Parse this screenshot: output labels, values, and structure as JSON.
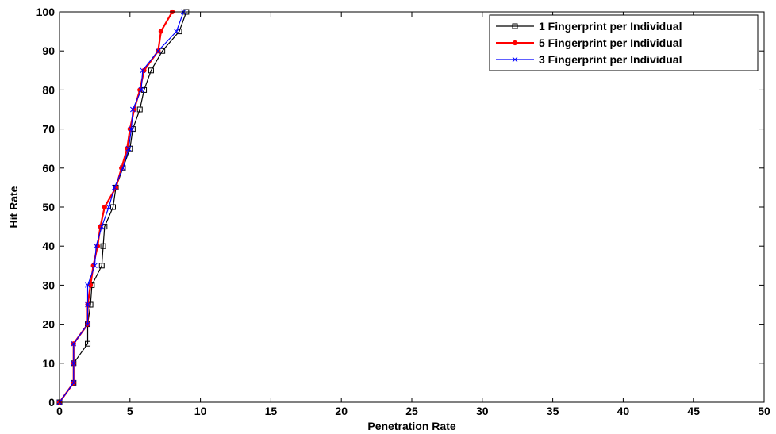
{
  "chart_data": {
    "type": "line",
    "title": "",
    "xlabel": "Penetration Rate",
    "ylabel": "Hit Rate",
    "xlim": [
      0,
      50
    ],
    "ylim": [
      0,
      100
    ],
    "xticks": [
      0,
      5,
      10,
      15,
      20,
      25,
      30,
      35,
      40,
      45,
      50
    ],
    "yticks": [
      0,
      10,
      20,
      30,
      40,
      50,
      60,
      70,
      80,
      90,
      100
    ],
    "grid": false,
    "legend_position": "top-right",
    "series": [
      {
        "name": "1 Fingerprint per Individual",
        "color": "#000000",
        "marker": "square",
        "points": [
          [
            0,
            0
          ],
          [
            1,
            5
          ],
          [
            1,
            10
          ],
          [
            2,
            15
          ],
          [
            2,
            20
          ],
          [
            2.2,
            25
          ],
          [
            2.3,
            30
          ],
          [
            3,
            35
          ],
          [
            3.1,
            40
          ],
          [
            3.2,
            45
          ],
          [
            3.8,
            50
          ],
          [
            4,
            55
          ],
          [
            4.5,
            60
          ],
          [
            5,
            65
          ],
          [
            5.2,
            70
          ],
          [
            5.7,
            75
          ],
          [
            6,
            80
          ],
          [
            6.5,
            85
          ],
          [
            7.3,
            90
          ],
          [
            8.5,
            95
          ],
          [
            9,
            100
          ]
        ]
      },
      {
        "name": "5 Fingerprint per Individual",
        "color": "#ff0000",
        "marker": "dot",
        "points": [
          [
            0,
            0
          ],
          [
            1,
            5
          ],
          [
            1,
            10
          ],
          [
            1,
            15
          ],
          [
            2,
            20
          ],
          [
            2,
            25
          ],
          [
            2.2,
            30
          ],
          [
            2.4,
            35
          ],
          [
            2.7,
            40
          ],
          [
            2.9,
            45
          ],
          [
            3.2,
            50
          ],
          [
            4,
            55
          ],
          [
            4.4,
            60
          ],
          [
            4.8,
            65
          ],
          [
            5,
            70
          ],
          [
            5.3,
            75
          ],
          [
            5.7,
            80
          ],
          [
            6,
            85
          ],
          [
            7,
            90
          ],
          [
            7.2,
            95
          ],
          [
            8,
            100
          ]
        ]
      },
      {
        "name": "3 Fingerprint per Individual",
        "color": "#0000ff",
        "marker": "x",
        "points": [
          [
            0,
            0
          ],
          [
            1,
            5
          ],
          [
            1,
            10
          ],
          [
            1,
            15
          ],
          [
            2,
            20
          ],
          [
            2,
            25
          ],
          [
            2,
            30
          ],
          [
            2.5,
            35
          ],
          [
            2.6,
            40
          ],
          [
            3,
            45
          ],
          [
            3.5,
            50
          ],
          [
            3.9,
            55
          ],
          [
            4.5,
            60
          ],
          [
            4.9,
            65
          ],
          [
            5.1,
            70
          ],
          [
            5.2,
            75
          ],
          [
            5.8,
            80
          ],
          [
            5.9,
            85
          ],
          [
            7,
            90
          ],
          [
            8.3,
            95
          ],
          [
            8.8,
            100
          ]
        ]
      }
    ]
  }
}
